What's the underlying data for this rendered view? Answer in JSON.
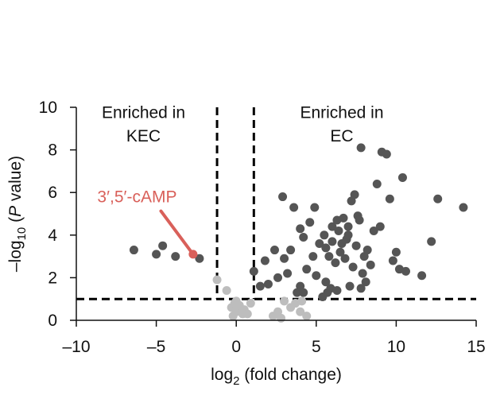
{
  "chart_data": {
    "type": "scatter",
    "title": "",
    "xlabel": {
      "prefix": "log",
      "sub": "2",
      "suffix": " (fold change)"
    },
    "ylabel": {
      "prefix": "–log",
      "sub": "10",
      "mid": " (",
      "italic": "P",
      "suffix": " value)"
    },
    "xlim": [
      -10,
      15
    ],
    "ylim": [
      0,
      10
    ],
    "xticks": [
      -10,
      -5,
      0,
      5,
      10,
      15
    ],
    "xtick_labels": [
      "–10",
      "–5",
      "0",
      "5",
      "10",
      "15"
    ],
    "yticks": [
      0,
      2,
      4,
      6,
      8,
      10
    ],
    "ytick_labels": [
      "0",
      "2",
      "4",
      "6",
      "8",
      "10"
    ],
    "grid": false,
    "thresholds": {
      "x": [
        -1.2,
        1.1
      ],
      "y": 1.0
    },
    "region_labels": [
      {
        "lines": [
          "Enriched in",
          "KEC"
        ],
        "x": -5.8,
        "y": [
          9.75,
          8.65
        ]
      },
      {
        "lines": [
          "Enriched in",
          "EC"
        ],
        "x": 6.6,
        "y": [
          9.75,
          8.65
        ]
      }
    ],
    "annotation": {
      "text": "3′,5′-cAMP",
      "color": "#d9605a",
      "point": [
        -2.7,
        3.1
      ],
      "label_pos": [
        -6.2,
        5.8
      ]
    },
    "colors": {
      "significant": "#555555",
      "nonsignificant": "#bdbdbd",
      "highlight": "#d9605a",
      "threshold": "#000000"
    },
    "series": [
      {
        "group": "significant",
        "points": [
          [
            -6.4,
            3.3
          ],
          [
            -5.0,
            3.1
          ],
          [
            -4.6,
            3.5
          ],
          [
            -3.8,
            3.0
          ],
          [
            -2.3,
            2.9
          ],
          [
            1.1,
            2.3
          ],
          [
            1.5,
            1.6
          ],
          [
            1.8,
            2.8
          ],
          [
            2.0,
            1.7
          ],
          [
            2.4,
            3.3
          ],
          [
            2.6,
            2.0
          ],
          [
            2.9,
            5.8
          ],
          [
            3.0,
            2.9
          ],
          [
            3.2,
            2.2
          ],
          [
            3.4,
            3.3
          ],
          [
            3.6,
            5.3
          ],
          [
            3.8,
            1.3
          ],
          [
            4.0,
            1.6
          ],
          [
            4.2,
            3.9
          ],
          [
            4.4,
            2.4
          ],
          [
            4.6,
            4.6
          ],
          [
            4.8,
            3.0
          ],
          [
            5.0,
            2.1
          ],
          [
            4.0,
            4.3
          ],
          [
            4.9,
            5.3
          ],
          [
            4.2,
            1.3
          ],
          [
            5.2,
            3.6
          ],
          [
            5.5,
            4.0
          ],
          [
            5.6,
            3.4
          ],
          [
            5.8,
            3.0
          ],
          [
            5.6,
            1.8
          ],
          [
            5.7,
            1.3
          ],
          [
            5.4,
            1.1
          ],
          [
            5.9,
            1.5
          ],
          [
            6.0,
            4.4
          ],
          [
            6.0,
            3.7
          ],
          [
            6.2,
            2.7
          ],
          [
            6.3,
            4.7
          ],
          [
            6.4,
            4.2
          ],
          [
            6.5,
            3.2
          ],
          [
            6.6,
            3.6
          ],
          [
            6.7,
            4.8
          ],
          [
            6.8,
            2.9
          ],
          [
            6.9,
            3.8
          ],
          [
            7.0,
            4.0
          ],
          [
            7.0,
            4.4
          ],
          [
            7.1,
            1.6
          ],
          [
            7.2,
            5.6
          ],
          [
            7.3,
            2.5
          ],
          [
            7.4,
            5.9
          ],
          [
            7.5,
            3.5
          ],
          [
            7.6,
            4.9
          ],
          [
            7.7,
            4.7
          ],
          [
            7.8,
            8.1
          ],
          [
            7.9,
            2.2
          ],
          [
            8.0,
            3.0
          ],
          [
            8.1,
            1.8
          ],
          [
            8.2,
            3.3
          ],
          [
            8.4,
            2.6
          ],
          [
            8.6,
            4.2
          ],
          [
            8.8,
            6.4
          ],
          [
            9.0,
            4.4
          ],
          [
            9.1,
            7.9
          ],
          [
            9.4,
            7.8
          ],
          [
            9.6,
            5.7
          ],
          [
            9.8,
            2.8
          ],
          [
            10.0,
            3.2
          ],
          [
            10.2,
            2.4
          ],
          [
            10.4,
            6.7
          ],
          [
            10.6,
            2.3
          ],
          [
            12.2,
            3.7
          ],
          [
            12.6,
            5.7
          ],
          [
            14.2,
            5.3
          ],
          [
            11.6,
            2.1
          ],
          [
            7.8,
            1.5
          ],
          [
            6.3,
            1.4
          ]
        ]
      },
      {
        "group": "nonsignificant",
        "points": [
          [
            -1.2,
            1.9
          ],
          [
            -0.6,
            1.4
          ],
          [
            -0.3,
            0.6
          ],
          [
            -0.1,
            0.8
          ],
          [
            0.0,
            0.4
          ],
          [
            0.2,
            0.7
          ],
          [
            0.4,
            0.3
          ],
          [
            0.5,
            0.5
          ],
          [
            0.7,
            0.3
          ],
          [
            0.0,
            0.9
          ],
          [
            -0.2,
            0.2
          ],
          [
            0.9,
            0.8
          ],
          [
            2.3,
            0.2
          ],
          [
            2.6,
            0.4
          ],
          [
            2.8,
            0.1
          ],
          [
            3.0,
            0.9
          ],
          [
            3.4,
            0.6
          ],
          [
            3.7,
            0.8
          ],
          [
            4.0,
            0.4
          ],
          [
            4.4,
            0.2
          ],
          [
            4.1,
            0.9
          ]
        ]
      },
      {
        "group": "highlight",
        "points": [
          [
            -2.7,
            3.1
          ]
        ]
      }
    ]
  }
}
